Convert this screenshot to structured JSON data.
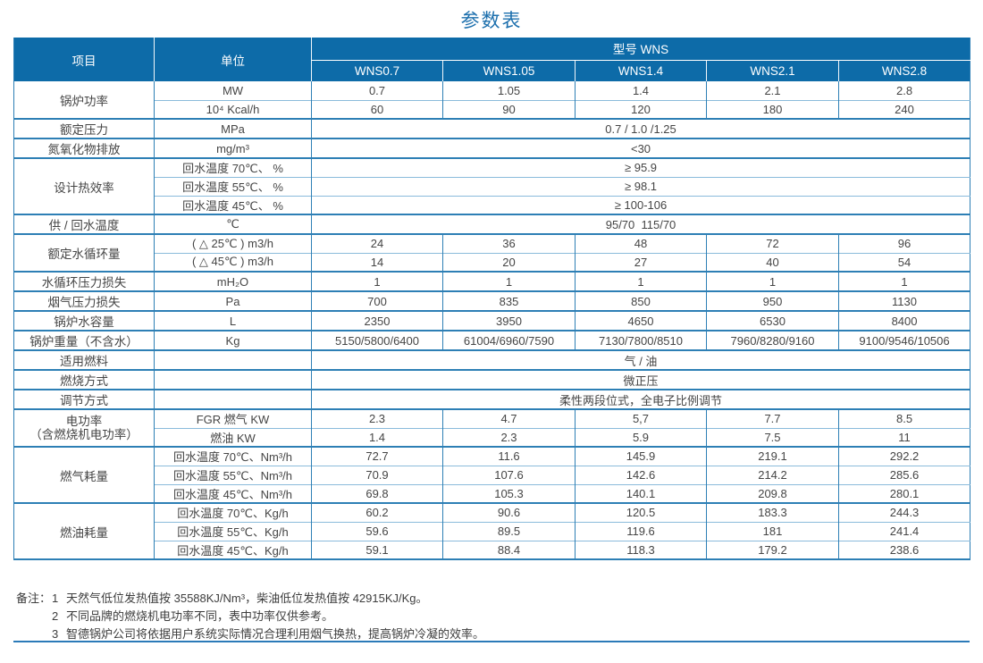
{
  "title": "参数表",
  "colors": {
    "header_bg": "#0d6ba8",
    "grid": "#2d7fb5",
    "grid_light": "#8abbdb",
    "title_blue": "#1c6fad",
    "rule_blue": "#2b7ab8"
  },
  "table": {
    "item_header": "项目",
    "unit_header": "单位",
    "model_group_header": "型号 WNS",
    "models": [
      "WNS0.7",
      "WNS1.05",
      "WNS1.4",
      "WNS2.1",
      "WNS2.8"
    ],
    "groups": [
      {
        "item": "锅炉功率",
        "rows": [
          {
            "unit": "MW",
            "values": [
              "0.7",
              "1.05",
              "1.4",
              "2.1",
              "2.8"
            ]
          },
          {
            "unit": "10⁴ Kcal/h",
            "values": [
              "60",
              "90",
              "120",
              "180",
              "240"
            ]
          }
        ]
      },
      {
        "item": "额定压力",
        "rows": [
          {
            "unit": "MPa",
            "span": "0.7 / 1.0 /1.25"
          }
        ]
      },
      {
        "item": "氮氧化物排放",
        "rows": [
          {
            "unit": "mg/m³",
            "span": "<30"
          }
        ]
      },
      {
        "item": "设计热效率",
        "rows": [
          {
            "unit": "回水温度 70℃、 %",
            "span": "≥ 95.9"
          },
          {
            "unit": "回水温度 55℃、 %",
            "span": "≥ 98.1"
          },
          {
            "unit": "回水温度 45℃、 %",
            "span": "≥ 100-106"
          }
        ]
      },
      {
        "item": "供 / 回水温度",
        "rows": [
          {
            "unit": "℃",
            "span": "95/70  115/70"
          }
        ]
      },
      {
        "item": "额定水循环量",
        "rows": [
          {
            "unit": "( △ 25℃ ) m3/h",
            "values": [
              "24",
              "36",
              "48",
              "72",
              "96"
            ]
          },
          {
            "unit": "( △ 45℃ ) m3/h",
            "values": [
              "14",
              "20",
              "27",
              "40",
              "54"
            ]
          }
        ]
      },
      {
        "item": "水循环压力损失",
        "rows": [
          {
            "unit": "mH₂O",
            "values": [
              "1",
              "1",
              "1",
              "1",
              "1"
            ]
          }
        ]
      },
      {
        "item": "烟气压力损失",
        "rows": [
          {
            "unit": "Pa",
            "values": [
              "700",
              "835",
              "850",
              "950",
              "1130"
            ]
          }
        ]
      },
      {
        "item": "锅炉水容量",
        "rows": [
          {
            "unit": "L",
            "values": [
              "2350",
              "3950",
              "4650",
              "6530",
              "8400"
            ]
          }
        ]
      },
      {
        "item": "锅炉重量（不含水）",
        "rows": [
          {
            "unit": "Kg",
            "values": [
              "5150/5800/6400",
              "61004/6960/7590",
              "7130/7800/8510",
              "7960/8280/9160",
              "9100/9546/10506"
            ]
          }
        ]
      },
      {
        "item": "适用燃料",
        "rows": [
          {
            "unit": "",
            "span": "气 / 油"
          }
        ]
      },
      {
        "item": "燃烧方式",
        "rows": [
          {
            "unit": "",
            "span": "微正压"
          }
        ]
      },
      {
        "item": "调节方式",
        "rows": [
          {
            "unit": "",
            "span": "柔性两段位式，全电子比例调节"
          }
        ]
      },
      {
        "item": "电功率（含燃烧机电功率）",
        "item_lines": [
          "电功率",
          "（含燃烧机电功率）"
        ],
        "rows": [
          {
            "unit": "FGR 燃气 KW",
            "values": [
              "2.3",
              "4.7",
              "5,7",
              "7.7",
              "8.5"
            ]
          },
          {
            "unit": "燃油 KW",
            "values": [
              "1.4",
              "2.3",
              "5.9",
              "7.5",
              "11"
            ]
          }
        ]
      },
      {
        "item": "燃气耗量",
        "rows": [
          {
            "unit": "回水温度 70℃、Nm³/h",
            "values": [
              "72.7",
              "11.6",
              "145.9",
              "219.1",
              "292.2"
            ]
          },
          {
            "unit": "回水温度 55℃、Nm³/h",
            "values": [
              "70.9",
              "107.6",
              "142.6",
              "214.2",
              "285.6"
            ]
          },
          {
            "unit": "回水温度 45℃、Nm³/h",
            "values": [
              "69.8",
              "105.3",
              "140.1",
              "209.8",
              "280.1"
            ]
          }
        ]
      },
      {
        "item": "燃油耗量",
        "rows": [
          {
            "unit": "回水温度 70℃、Kg/h",
            "values": [
              "60.2",
              "90.6",
              "120.5",
              "183.3",
              "244.3"
            ]
          },
          {
            "unit": "回水温度 55℃、Kg/h",
            "values": [
              "59.6",
              "89.5",
              "119.6",
              "181",
              "241.4"
            ]
          },
          {
            "unit": "回水温度 45℃、Kg/h",
            "values": [
              "59.1",
              "88.4",
              "118.3",
              "179.2",
              "238.6"
            ]
          }
        ]
      }
    ]
  },
  "notes": {
    "label": "备注：",
    "items": [
      {
        "num": "1",
        "text": "天然气低位发热值按 35588KJ/Nm³，柴油低位发热值按 42915KJ/Kg。"
      },
      {
        "num": "2",
        "text": "不同品牌的燃烧机电功率不同，表中功率仅供参考。"
      },
      {
        "num": "3",
        "text": "智德锅炉公司将依据用户系统实际情况合理利用烟气换热，提高锅炉冷凝的效率。"
      }
    ]
  }
}
